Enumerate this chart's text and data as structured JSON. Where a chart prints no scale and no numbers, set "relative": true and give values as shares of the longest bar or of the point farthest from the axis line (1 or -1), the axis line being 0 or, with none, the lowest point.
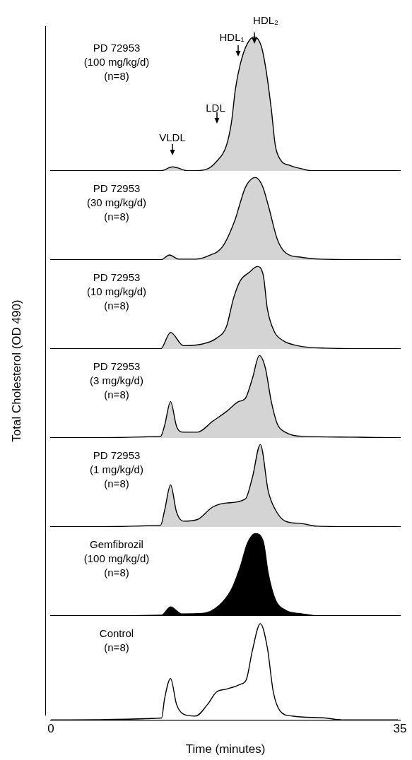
{
  "chart_data": [
    {
      "type": "area",
      "title": "PD 72953\n(100 mg/kg/d)\n(n=8)",
      "relative": true,
      "xlim": [
        0,
        35
      ],
      "tick_labels": false,
      "x": [
        0,
        11.0,
        12.2,
        13.8,
        15.5,
        16.6,
        17.6,
        18.1,
        18.5,
        19.0,
        19.7,
        20.4,
        21.1,
        21.6,
        22.1,
        22.5,
        23.0,
        24.0,
        25.2,
        26.3,
        34.8
      ],
      "series": [
        {
          "color": "#d4d4d4",
          "values": [
            0,
            0,
            0.03,
            0,
            0.01,
            0.07,
            0.19,
            0.36,
            0.61,
            0.8,
            0.95,
            1,
            0.93,
            0.74,
            0.46,
            0.19,
            0.085,
            0.04,
            0.015,
            0,
            0
          ]
        }
      ],
      "annotations": [
        "VLDL",
        "LDL",
        "HDL₁",
        "HDL₂"
      ]
    },
    {
      "type": "area",
      "title": "PD 72953\n(30 mg/kg/d)\n(n=8)",
      "relative": true,
      "xlim": [
        0,
        35
      ],
      "tick_labels": false,
      "x": [
        0,
        11.0,
        11.9,
        12.8,
        14.5,
        15.8,
        17.2,
        18.5,
        18.9,
        19.5,
        20.5,
        21.2,
        21.8,
        22.7,
        23.5,
        25.2,
        27.0,
        34.8
      ],
      "series": [
        {
          "color": "#d4d4d4",
          "values": [
            0,
            0,
            0.06,
            0.01,
            0.01,
            0.05,
            0.16,
            0.5,
            0.66,
            0.88,
            1,
            0.9,
            0.66,
            0.25,
            0.09,
            0.03,
            0.01,
            0
          ]
        }
      ]
    },
    {
      "type": "area",
      "title": "PD 72953\n(10 mg/kg/d)\n(n=8)",
      "relative": true,
      "xlim": [
        0,
        35
      ],
      "tick_labels": false,
      "x": [
        0,
        11.0,
        12.0,
        13.3,
        15.2,
        16.6,
        17.6,
        18.3,
        19.0,
        19.9,
        20.7,
        21.3,
        21.7,
        22.4,
        23.3,
        24.7,
        27.5,
        34.8
      ],
      "series": [
        {
          "color": "#d4d4d4",
          "values": [
            0,
            0,
            0.2,
            0.04,
            0.06,
            0.13,
            0.27,
            0.61,
            0.83,
            0.93,
            1,
            0.89,
            0.49,
            0.21,
            0.1,
            0.04,
            0.01,
            0
          ]
        }
      ]
    },
    {
      "type": "area",
      "title": "PD 72953\n(3 mg/kg/d)\n(n=8)",
      "relative": true,
      "xlim": [
        0,
        35
      ],
      "tick_labels": false,
      "ylabel": "Total Cholesterol (OD 490)",
      "x": [
        0,
        11.0,
        11.4,
        12.0,
        12.6,
        13.3,
        14.7,
        16.2,
        17.6,
        18.8,
        19.5,
        20.2,
        20.9,
        21.5,
        22.1,
        22.7,
        23.5,
        25.2,
        29.9,
        34.8
      ],
      "series": [
        {
          "color": "#d4d4d4",
          "values": [
            0,
            0.02,
            0.15,
            0.44,
            0.14,
            0.07,
            0.07,
            0.2,
            0.32,
            0.44,
            0.48,
            0.72,
            1,
            0.85,
            0.44,
            0.17,
            0.07,
            0.02,
            0.01,
            0
          ]
        }
      ]
    },
    {
      "type": "area",
      "title": "PD 72953\n(1 mg/kg/d)\n(n=8)",
      "relative": true,
      "xlim": [
        0,
        35
      ],
      "tick_labels": false,
      "x": [
        0,
        11.0,
        11.4,
        12.0,
        12.6,
        13.3,
        14.7,
        16.2,
        17.6,
        19.5,
        20.2,
        21.0,
        21.8,
        22.5,
        23.5,
        25.2,
        26.6,
        34.8
      ],
      "series": [
        {
          "color": "#d4d4d4",
          "values": [
            0,
            0.02,
            0.2,
            0.51,
            0.18,
            0.07,
            0.09,
            0.24,
            0.29,
            0.34,
            0.6,
            1,
            0.43,
            0.21,
            0.07,
            0.04,
            0.01,
            0
          ]
        }
      ]
    },
    {
      "type": "area",
      "title": "Gemfibrozil\n(100 mg/kg/d)\n(n=8)",
      "relative": true,
      "xlim": [
        0,
        35
      ],
      "tick_labels": false,
      "x": [
        0,
        11.1,
        12.0,
        13.1,
        15.2,
        16.9,
        18.1,
        19.0,
        19.7,
        20.5,
        21.3,
        21.8,
        22.5,
        23.5,
        25.2,
        27.0,
        34.8
      ],
      "series": [
        {
          "color": "#000000",
          "values": [
            0,
            0.01,
            0.11,
            0.025,
            0.03,
            0.13,
            0.32,
            0.6,
            0.88,
            1,
            0.9,
            0.51,
            0.2,
            0.07,
            0.025,
            0,
            0
          ]
        }
      ]
    },
    {
      "type": "line",
      "title": "Control\n(n=8)",
      "relative": true,
      "xlim": [
        0,
        35
      ],
      "xticks": [
        0,
        35
      ],
      "xlabel": "Time (minutes)",
      "tick_labels": "x",
      "x": [
        0,
        11.1,
        11.4,
        12.0,
        12.6,
        13.3,
        14.5,
        15.7,
        16.6,
        17.6,
        19.0,
        19.6,
        20.2,
        21.0,
        21.7,
        22.3,
        23.0,
        24.2,
        27.5,
        29.2,
        34.8
      ],
      "series": [
        {
          "color": "#000000",
          "values": [
            0,
            0.02,
            0.22,
            0.43,
            0.16,
            0.06,
            0.04,
            0.16,
            0.29,
            0.32,
            0.37,
            0.42,
            0.72,
            1,
            0.75,
            0.29,
            0.09,
            0.04,
            0.02,
            0,
            0
          ]
        }
      ]
    }
  ]
}
